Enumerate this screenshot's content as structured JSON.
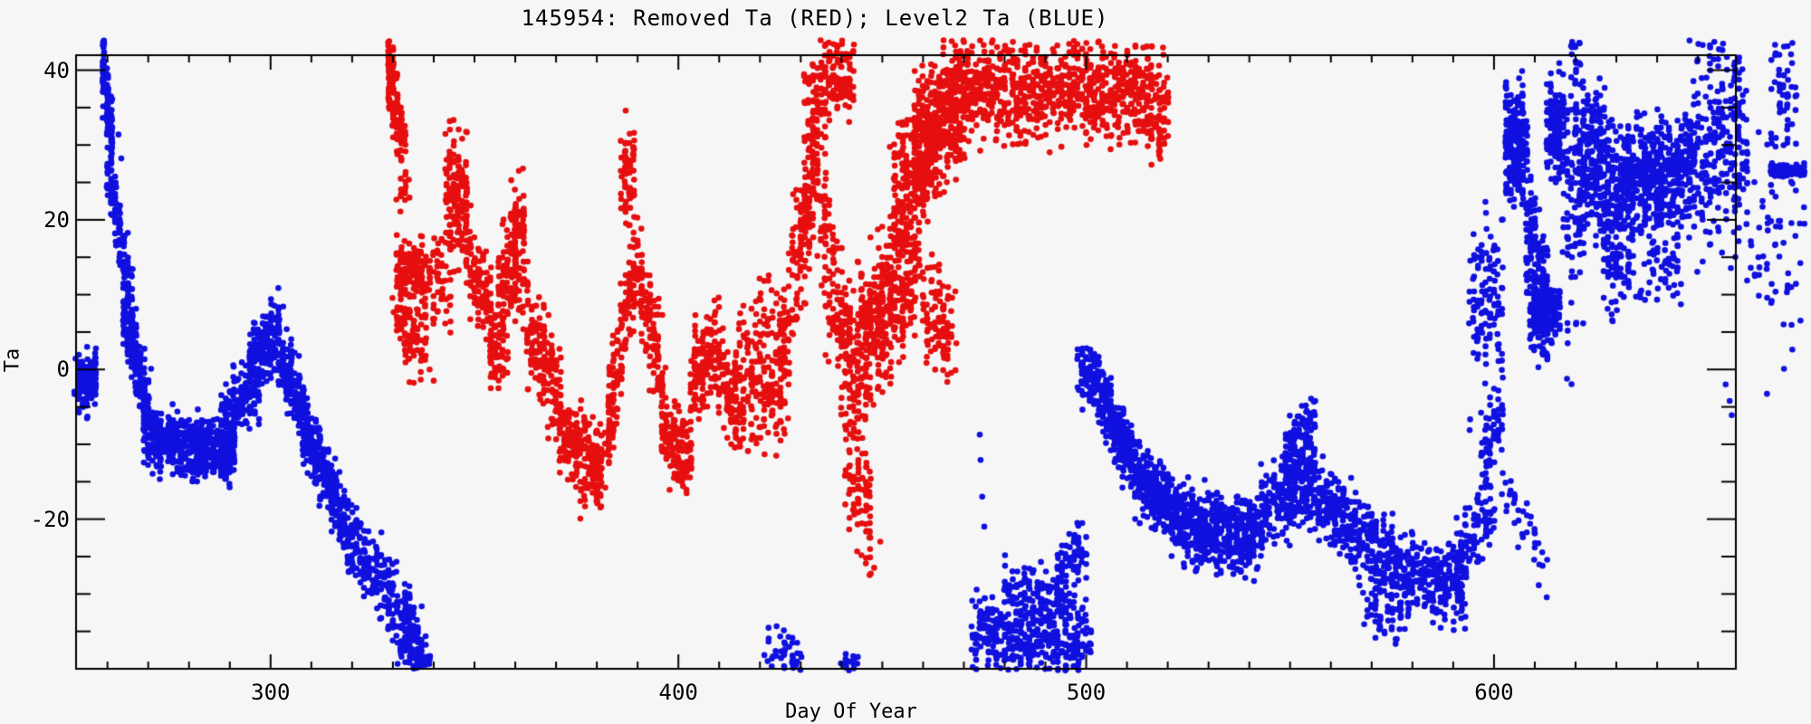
{
  "title": "145954: Removed Ta (RED); Level2 Ta (BLUE)",
  "colors": {
    "red": "#e60f0f",
    "blue": "#1010df",
    "background": "#f6f6f6",
    "axis": "#000000"
  },
  "chart_data": {
    "type": "scatter",
    "title": "145954: Removed Ta (RED); Level2 Ta (BLUE)",
    "xlabel": "Day Of Year",
    "ylabel": "Ta",
    "x_range": [
      252.3,
      659.3
    ],
    "y_range": [
      -40,
      42
    ],
    "x_major_ticks": [
      300,
      400,
      500,
      600
    ],
    "y_major_ticks": [
      40,
      20,
      0,
      -20,
      -40
    ],
    "x_minor_step": 10,
    "y_minor_step": 5,
    "grid": false,
    "legend": "in title",
    "marker": "filled-circle",
    "segment_fields": [
      "day_start",
      "day_end",
      "ta_start",
      "ta_end",
      "ta_sigma",
      "n_points"
    ],
    "series": [
      {
        "name": "Removed Ta (RED)",
        "color_key": "red",
        "segments": [
          [
            328.5,
            331,
            40,
            36.5,
            2.2,
            80
          ],
          [
            330,
            333,
            32.5,
            31,
            1.6,
            45
          ],
          [
            331,
            334,
            25,
            24,
            1.8,
            20
          ],
          [
            330,
            333.5,
            7,
            7,
            1.2,
            28
          ],
          [
            331,
            337.5,
            13.5,
            13.5,
            1.8,
            130
          ],
          [
            332,
            338,
            6,
            3,
            2.8,
            80
          ],
          [
            337,
            344,
            12,
            11,
            3.0,
            80
          ],
          [
            343,
            348.5,
            23,
            23,
            4.2,
            140
          ],
          [
            348,
            355,
            16,
            6,
            3.0,
            120
          ],
          [
            353.5,
            358,
            2,
            2,
            2.4,
            60
          ],
          [
            356,
            361,
            11,
            14,
            3.8,
            110
          ],
          [
            359,
            362.5,
            19,
            21,
            2.8,
            55
          ],
          [
            362,
            371,
            7,
            -4,
            3.4,
            170
          ],
          [
            371,
            382,
            -9,
            -12,
            2.4,
            210
          ],
          [
            376,
            381,
            -16.5,
            -16.5,
            1.4,
            28
          ],
          [
            382.5,
            389,
            -8,
            13,
            3.8,
            150
          ],
          [
            386,
            389.5,
            25,
            28,
            3.2,
            65
          ],
          [
            389,
            397,
            16,
            -4,
            3.4,
            150
          ],
          [
            396,
            403,
            -8,
            -11,
            2.8,
            130
          ],
          [
            403,
            410,
            -2,
            5,
            3.2,
            130
          ],
          [
            409,
            414.5,
            0,
            -6,
            2.8,
            95
          ],
          [
            414,
            427,
            -2,
            2,
            4.8,
            260
          ],
          [
            427,
            434,
            9,
            27,
            4.5,
            150
          ],
          [
            431,
            436.5,
            33,
            36,
            3.5,
            85
          ],
          [
            436,
            443,
            38.5,
            39.5,
            2.6,
            110
          ],
          [
            435,
            444,
            19,
            -4,
            5.5,
            200
          ],
          [
            441,
            447.5,
            -12,
            -20,
            3.6,
            85
          ],
          [
            444,
            459,
            2,
            16,
            5.0,
            420
          ],
          [
            452,
            462,
            23,
            29,
            3.8,
            190
          ],
          [
            458,
            470,
            30,
            36,
            4.2,
            450
          ],
          [
            460,
            468,
            10,
            4,
            3.8,
            110
          ],
          [
            469,
            514,
            37.5,
            37,
            3.1,
            780
          ],
          [
            514,
            520.5,
            35.5,
            34,
            3.3,
            110
          ]
        ],
        "outliers": [
          [
            447,
            -24
          ],
          [
            448,
            -26.5
          ],
          [
            449.5,
            -23
          ],
          [
            339,
            0
          ],
          [
            340,
            -1.5
          ]
        ]
      },
      {
        "name": "Level2 Ta (BLUE)",
        "color_key": "blue",
        "segments": [
          [
            252.4,
            257.5,
            -1.5,
            -1.5,
            1.8,
            170
          ],
          [
            258.5,
            261.5,
            42,
            29,
            2.0,
            120
          ],
          [
            260,
            266,
            27,
            9,
            2.0,
            130
          ],
          [
            264,
            270,
            8,
            -6,
            2.2,
            200
          ],
          [
            269,
            291,
            -9,
            -11,
            2.0,
            600
          ],
          [
            288,
            297,
            -8,
            -1,
            2.4,
            200
          ],
          [
            295,
            302,
            1,
            5,
            2.2,
            190
          ],
          [
            302,
            309,
            3,
            -7,
            2.4,
            170
          ],
          [
            308,
            316,
            -8,
            -17,
            2.2,
            190
          ],
          [
            315,
            325,
            -17,
            -28,
            2.4,
            190
          ],
          [
            325,
            334,
            -26,
            -36,
            2.8,
            140
          ],
          [
            333,
            339,
            -31,
            -42,
            2.8,
            120
          ],
          [
            421,
            431,
            -38,
            -39,
            1.8,
            50
          ],
          [
            440,
            444.5,
            -39.5,
            -39.5,
            0.8,
            22
          ],
          [
            472,
            501,
            -35,
            -36.5,
            2.6,
            400
          ],
          [
            480,
            495,
            -30,
            -31,
            2.2,
            120
          ],
          [
            493,
            500,
            -27,
            -23.5,
            2.0,
            80
          ],
          [
            498,
            503,
            0.5,
            -2,
            1.8,
            90
          ],
          [
            503,
            512,
            -3,
            -13,
            2.2,
            240
          ],
          [
            512,
            524,
            -14,
            -20,
            2.4,
            340
          ],
          [
            524,
            543,
            -21,
            -22,
            2.4,
            480
          ],
          [
            543,
            556,
            -19,
            -15,
            2.6,
            260
          ],
          [
            549,
            556,
            -11,
            -8,
            2.2,
            110
          ],
          [
            556,
            576,
            -17,
            -26,
            2.6,
            340
          ],
          [
            568,
            578,
            -32,
            -33.5,
            1.8,
            50
          ],
          [
            576,
            593,
            -27,
            -29,
            2.4,
            260
          ],
          [
            590,
            600,
            -26,
            -19,
            2.4,
            110
          ],
          [
            597,
            602,
            -13,
            -5,
            2.8,
            60
          ],
          [
            602,
            613,
            -14,
            -27,
            2.0,
            40
          ],
          [
            594,
            602,
            7,
            9,
            6.0,
            120
          ],
          [
            603,
            608,
            30.5,
            30.5,
            3.8,
            240
          ],
          [
            608,
            613,
            17,
            8,
            4.5,
            160
          ],
          [
            609,
            616,
            7,
            7.5,
            1.8,
            200
          ],
          [
            613,
            617,
            32,
            32,
            3.2,
            150
          ],
          [
            617,
            622,
            25,
            25,
            11.0,
            130
          ],
          [
            621,
            627,
            27,
            27,
            5.0,
            240
          ],
          [
            627,
            631,
            21,
            21,
            6.0,
            150
          ],
          [
            631,
            649,
            26.5,
            26.5,
            3.2,
            500
          ],
          [
            631,
            646,
            17,
            17,
            3.8,
            140
          ],
          [
            648,
            662,
            30,
            30,
            7.0,
            280
          ],
          [
            663,
            676,
            16,
            16,
            7.0,
            60
          ],
          [
            667.5,
            676,
            26.6,
            26.6,
            0.5,
            80
          ],
          [
            668,
            674,
            37,
            37,
            4.5,
            55
          ]
        ],
        "outliers": [
          [
            262.7,
            31.4
          ],
          [
            263.4,
            28.2
          ],
          [
            270.7,
            0.1
          ],
          [
            473.9,
            -8.7
          ],
          [
            474.1,
            -12.1
          ],
          [
            474.5,
            -17
          ],
          [
            475,
            -21
          ],
          [
            656.8,
            -2
          ],
          [
            657.8,
            -4.2
          ],
          [
            658.3,
            -6.1
          ]
        ]
      }
    ]
  }
}
